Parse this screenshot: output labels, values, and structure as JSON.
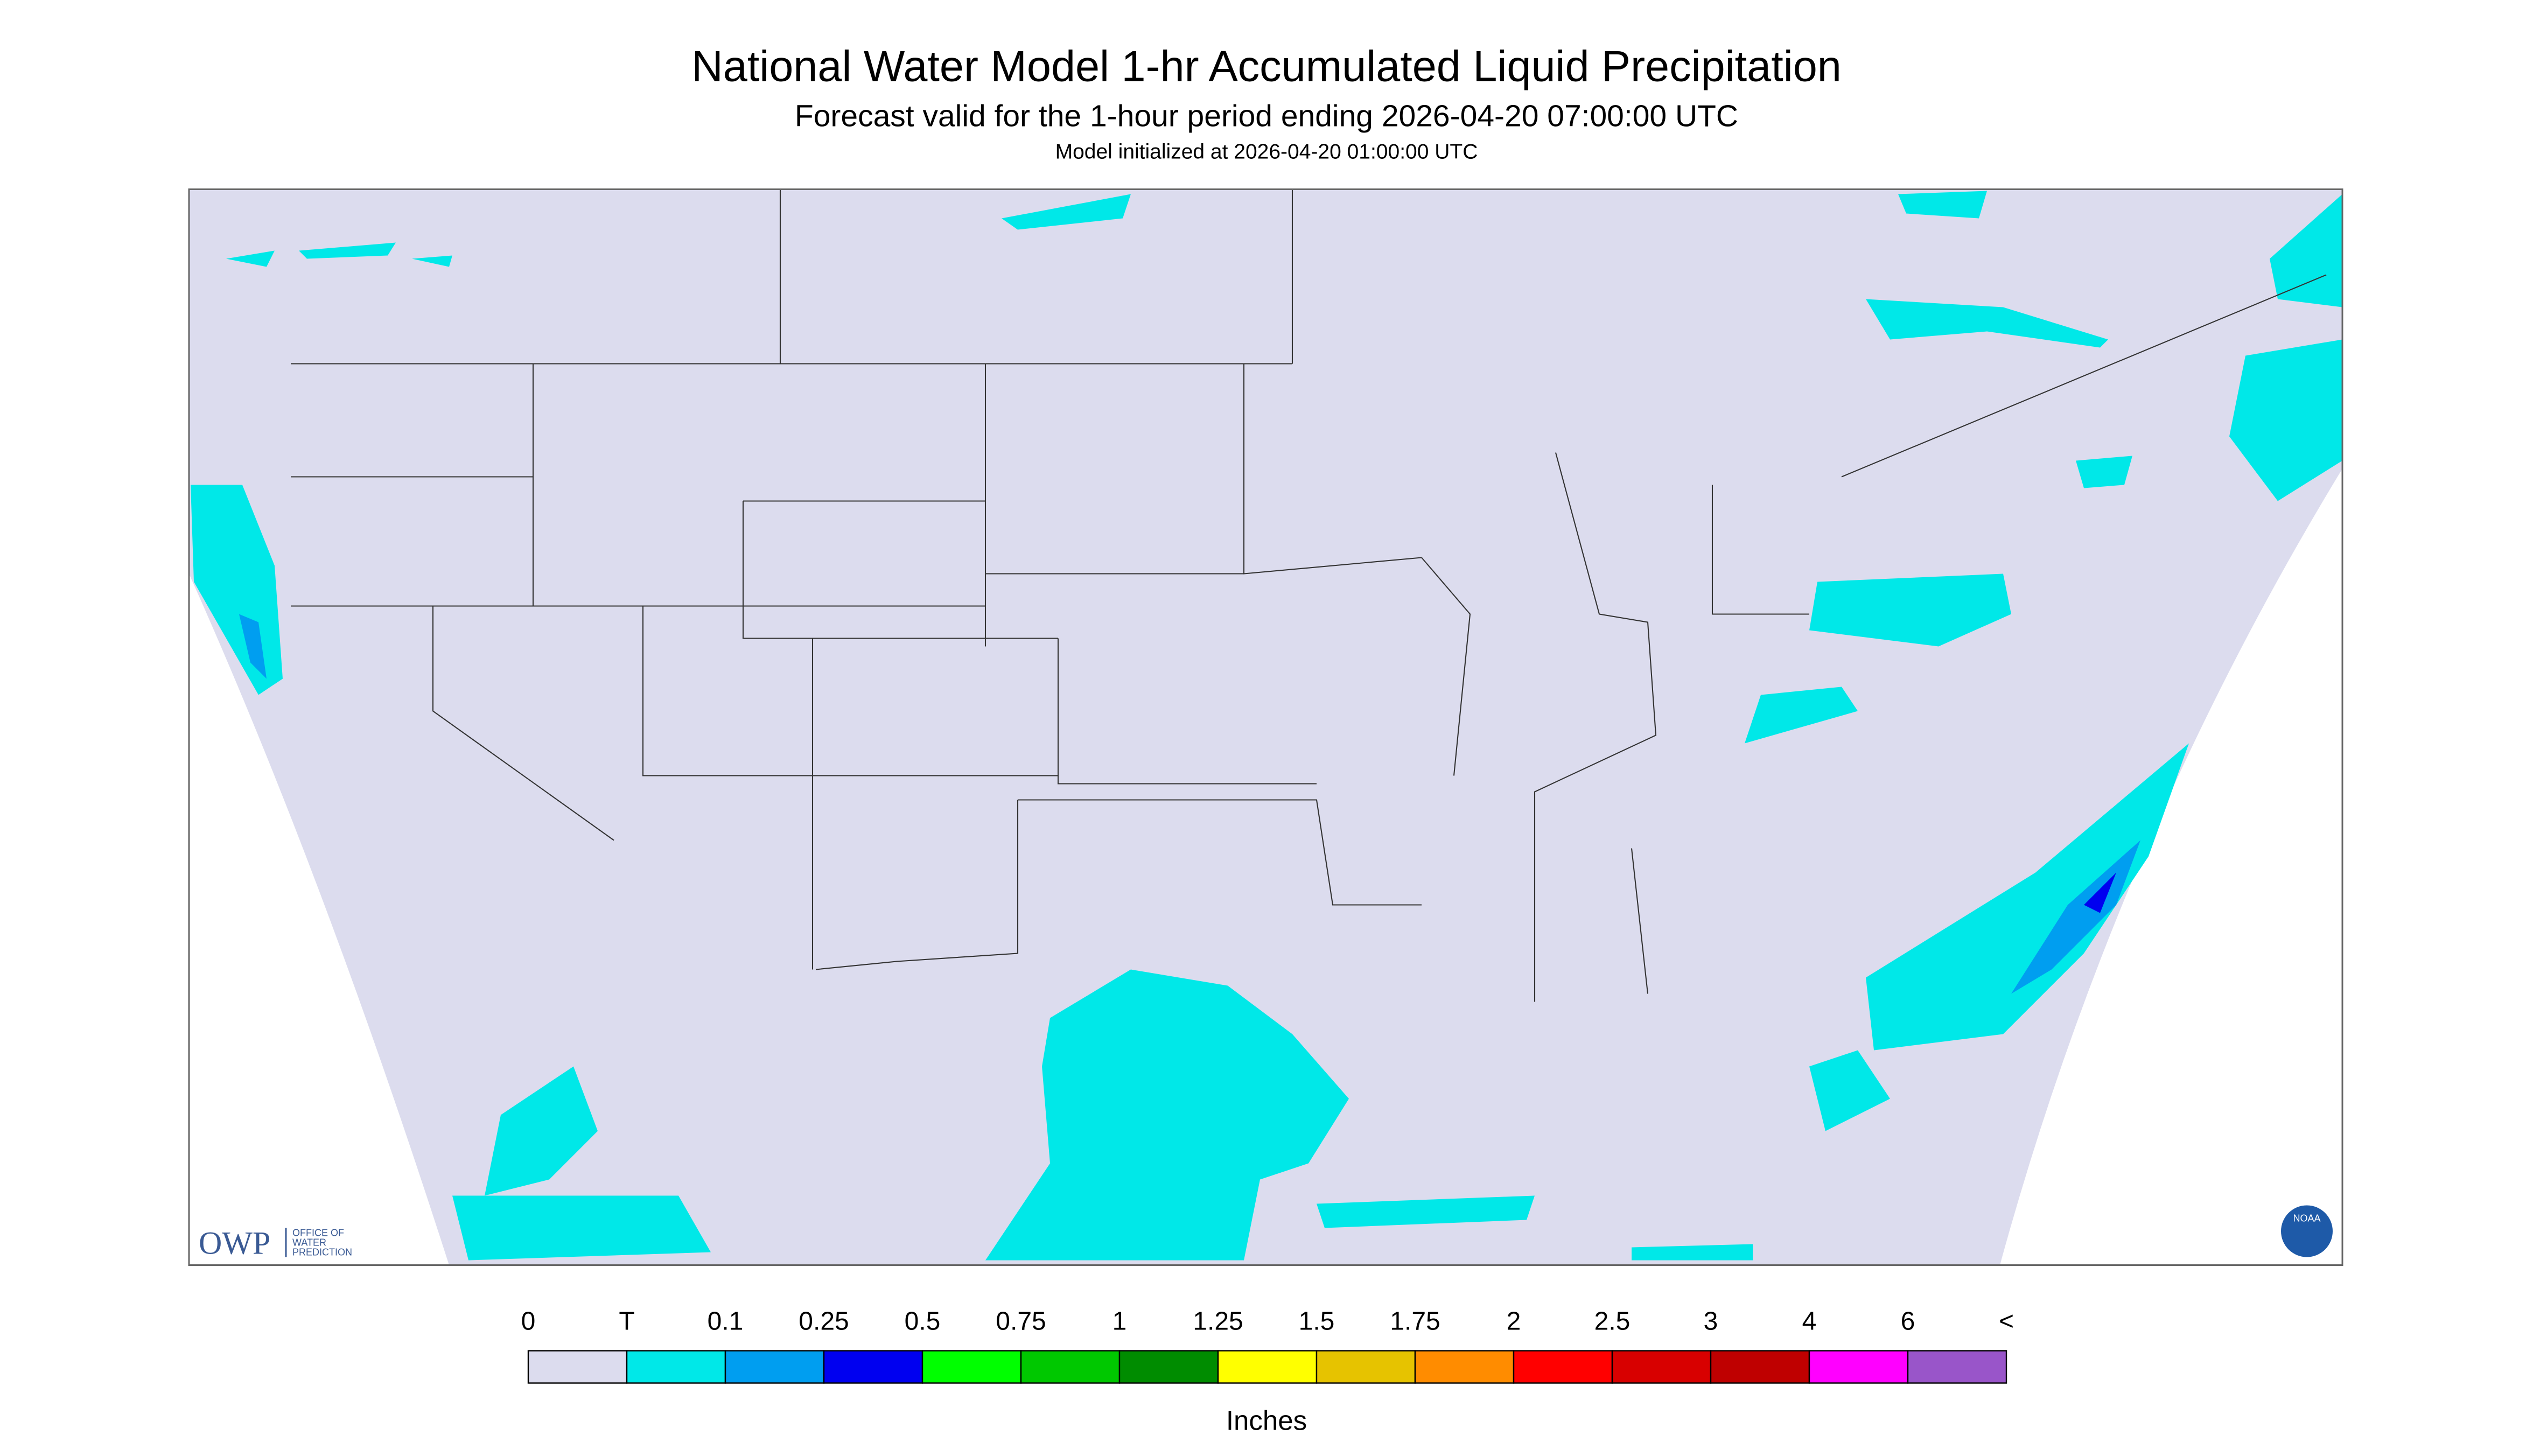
{
  "header": {
    "title": "National Water Model 1-hr Accumulated Liquid Precipitation",
    "subtitle": "Forecast valid for the 1-hour period ending 2026-04-20 07:00:00 UTC",
    "init": "Model initialized at 2026-04-20 01:00:00 UTC"
  },
  "logo": {
    "owp": "OWP",
    "office": [
      "OFFICE OF",
      "WATER",
      "PREDICTION"
    ],
    "noaa": "NOAA"
  },
  "legend": {
    "labels": [
      "0",
      "T",
      "0.1",
      "0.25",
      "0.5",
      "0.75",
      "1",
      "1.25",
      "1.5",
      "1.75",
      "2",
      "2.5",
      "3",
      "4",
      "6",
      "<"
    ],
    "colors": [
      "#dcdcee",
      "#00e8e8",
      "#009ef0",
      "#0000f0",
      "#00ff00",
      "#00c800",
      "#008c00",
      "#ffff00",
      "#e6c300",
      "#ff8c00",
      "#ff0000",
      "#d80000",
      "#bf0000",
      "#ff00ff",
      "#9955c9"
    ],
    "units": "Inches"
  }
}
